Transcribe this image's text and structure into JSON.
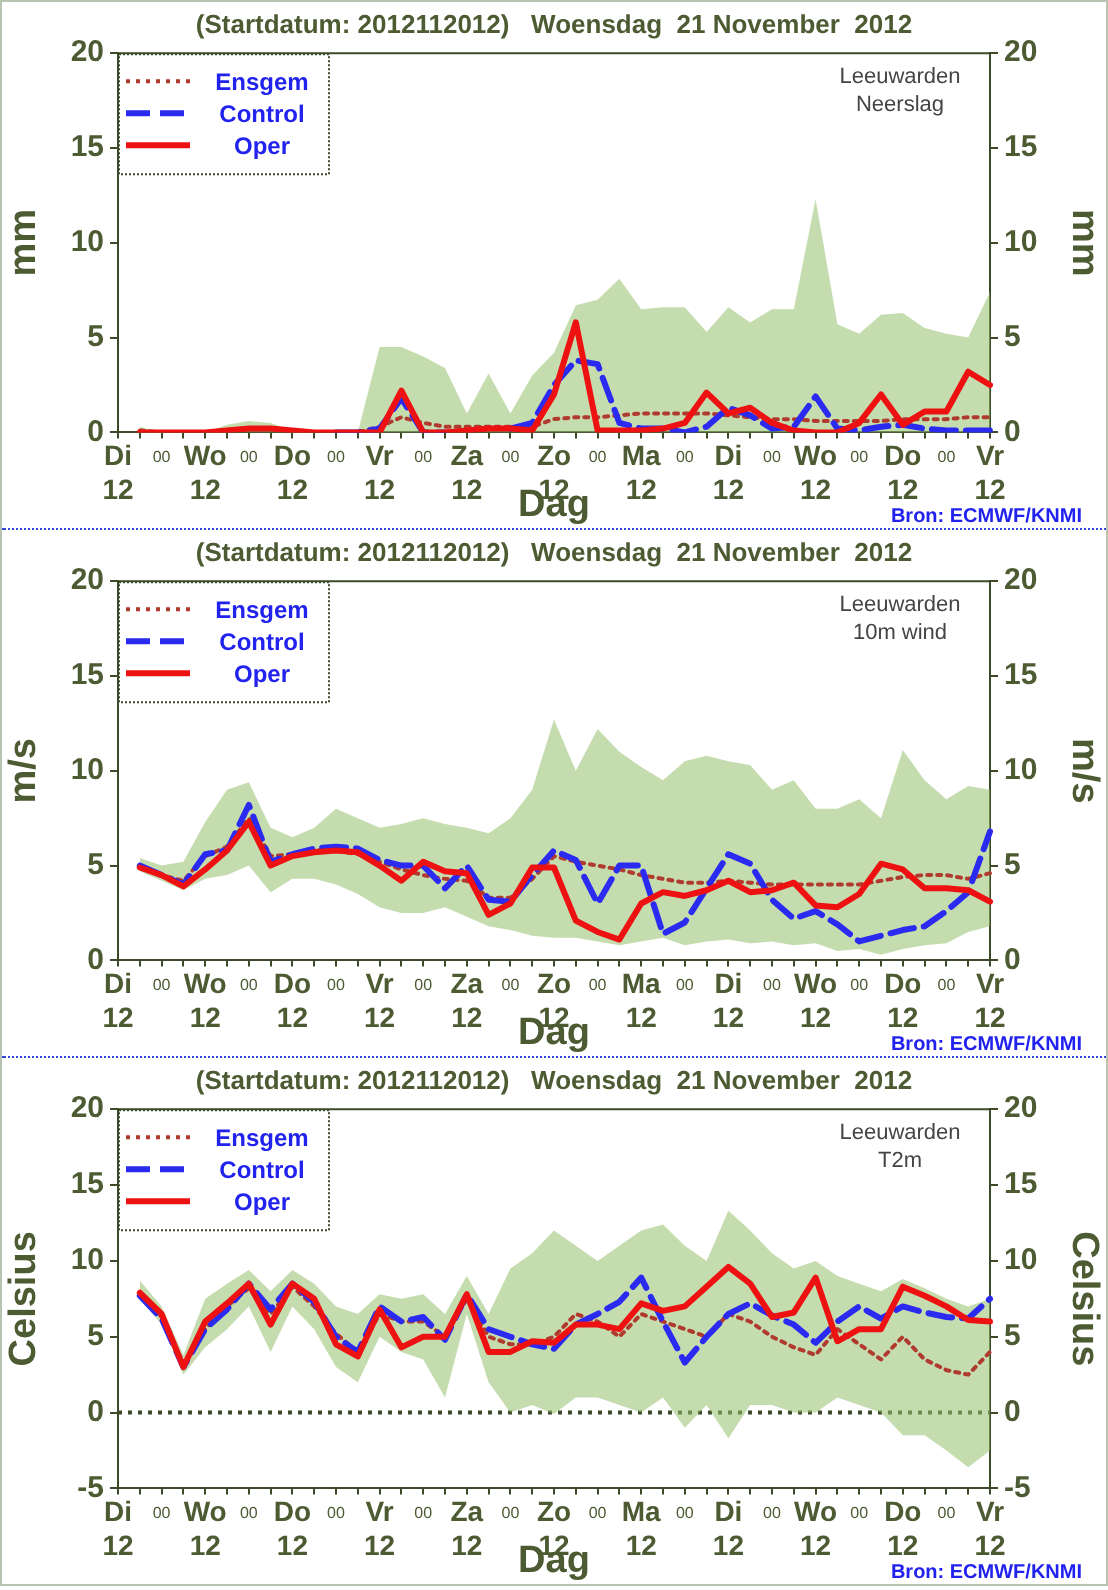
{
  "chart_data": [
    {
      "type": "line",
      "title": "(Startdatum: 2012112012)   Woensdag  21 November  2012",
      "xlabel": "Dag",
      "ylabel": "mm",
      "y2label": "mm",
      "annotations": [
        "Leeuwarden",
        "Neerslag",
        "Bron: ECMWF/KNMI"
      ],
      "categories": [
        "Di\n12",
        null,
        "00",
        null,
        "Wo\n12",
        null,
        "00",
        null,
        "Do\n12",
        null,
        "00",
        null,
        "Vr\n12",
        null,
        "00",
        null,
        "Za\n12",
        null,
        "00",
        null,
        "Zo\n12",
        null,
        "00",
        null,
        "Ma\n12",
        null,
        "00",
        null,
        "Di\n12",
        null,
        "00",
        null,
        "Wo\n12",
        null,
        "00",
        null,
        "Do\n12",
        null,
        "00",
        null,
        "Vr\n12"
      ],
      "ylim": [
        0,
        20
      ],
      "yticks": [
        0,
        5,
        10,
        15,
        20
      ],
      "y2lim": [
        0,
        20
      ],
      "y2ticks": [
        0,
        5,
        10,
        15,
        20
      ],
      "legend": "top left",
      "series": [
        {
          "name": "Ensgem",
          "color": "#b03a2e",
          "line_style": "dotted",
          "values": [
            null,
            0.1,
            0,
            0,
            0,
            0.1,
            0.2,
            0.2,
            0.1,
            0,
            0,
            0,
            0.3,
            0.8,
            0.5,
            0.3,
            0.3,
            0.3,
            0.3,
            0.3,
            0.7,
            0.8,
            0.8,
            0.9,
            1.0,
            1.0,
            1.0,
            1.0,
            0.9,
            0.8,
            0.7,
            0.7,
            0.6,
            0.6,
            0.6,
            0.6,
            0.7,
            0.7,
            0.7,
            0.8,
            0.8
          ],
          "lower": [
            null,
            0,
            0,
            0,
            0,
            0,
            0,
            0,
            0,
            0,
            0,
            0,
            0,
            0,
            0,
            0,
            0,
            0,
            0,
            0,
            0,
            0,
            0,
            0,
            0,
            0,
            0,
            0,
            0,
            0,
            0,
            0,
            0,
            0,
            0,
            0,
            0,
            0,
            0,
            0,
            0
          ],
          "upper": [
            null,
            0.3,
            0,
            0,
            0,
            0.4,
            0.6,
            0.5,
            0.1,
            0,
            0,
            0,
            4.5,
            4.5,
            4.0,
            3.4,
            1.0,
            3.1,
            1.0,
            3.0,
            4.2,
            6.7,
            7.0,
            8.1,
            6.5,
            6.6,
            6.6,
            5.3,
            6.6,
            5.8,
            6.5,
            6.5,
            12.3,
            5.7,
            5.2,
            6.2,
            6.3,
            5.5,
            5.2,
            5.0,
            7.4
          ]
        },
        {
          "name": "Control",
          "color": "#2a2af0",
          "line_style": "dashed",
          "values": [
            null,
            null,
            null,
            null,
            null,
            null,
            null,
            null,
            null,
            null,
            0,
            0,
            0.2,
            1.8,
            0,
            0,
            null,
            null,
            0.2,
            0.5,
            2.5,
            3.8,
            3.6,
            0.5,
            0.2,
            0.2,
            0,
            0.3,
            1.3,
            0.9,
            0.2,
            0.3,
            1.9,
            0.2,
            0.1,
            0.3,
            0.4,
            0.2,
            0.1,
            0.1,
            0.1
          ]
        },
        {
          "name": "Oper",
          "color": "#ee1111",
          "line_style": "solid",
          "values": [
            null,
            0,
            0,
            0,
            0,
            0.1,
            0.2,
            0.2,
            0.1,
            0,
            0,
            0,
            0,
            2.2,
            0,
            0,
            0.1,
            0.2,
            0.2,
            0.1,
            2.0,
            5.8,
            0.1,
            0.1,
            0.1,
            0.2,
            0.5,
            2.1,
            1.0,
            1.3,
            0.5,
            0.1,
            0,
            0,
            0.5,
            2.0,
            0.4,
            1.1,
            1.1,
            3.2,
            2.5
          ]
        }
      ]
    },
    {
      "type": "line",
      "title": "(Startdatum: 2012112012)   Woensdag  21 November  2012",
      "xlabel": "Dag",
      "ylabel": "m/s",
      "y2label": "m/s",
      "annotations": [
        "Leeuwarden",
        "10m wind",
        "Bron: ECMWF/KNMI"
      ],
      "categories": [
        "Di\n12",
        null,
        "00",
        null,
        "Wo\n12",
        null,
        "00",
        null,
        "Do\n12",
        null,
        "00",
        null,
        "Vr\n12",
        null,
        "00",
        null,
        "Za\n12",
        null,
        "00",
        null,
        "Zo\n12",
        null,
        "00",
        null,
        "Ma\n12",
        null,
        "00",
        null,
        "Di\n12",
        null,
        "00",
        null,
        "Wo\n12",
        null,
        "00",
        null,
        "Do\n12",
        null,
        "00",
        null,
        "Vr\n12"
      ],
      "ylim": [
        0,
        20
      ],
      "yticks": [
        0,
        5,
        10,
        15,
        20
      ],
      "y2lim": [
        0,
        20
      ],
      "y2ticks": [
        0,
        5,
        10,
        15,
        20
      ],
      "legend": "top left",
      "series": [
        {
          "name": "Ensgem",
          "color": "#b03a2e",
          "line_style": "dotted",
          "values": [
            null,
            5.0,
            4.5,
            4.2,
            5.5,
            6.0,
            7.5,
            5.5,
            5.6,
            5.8,
            5.8,
            5.6,
            5.2,
            4.8,
            4.5,
            4.3,
            4.2,
            3.3,
            3.3,
            4.3,
            5.5,
            5.2,
            5.0,
            4.8,
            4.5,
            4.3,
            4.1,
            4.1,
            4.2,
            4.1,
            4.0,
            4.0,
            4.0,
            4.0,
            4.0,
            4.2,
            4.4,
            4.5,
            4.5,
            4.3,
            4.6
          ],
          "lower": [
            null,
            4.7,
            4.2,
            3.7,
            4.3,
            4.5,
            5.0,
            3.6,
            4.3,
            4.3,
            4.0,
            3.5,
            2.8,
            2.5,
            2.5,
            2.8,
            2.3,
            1.8,
            1.6,
            1.3,
            1.2,
            1.2,
            1.0,
            0.8,
            1.0,
            1.2,
            0.8,
            1.0,
            1.1,
            0.9,
            1.0,
            0.8,
            0.9,
            0.5,
            0.6,
            0.3,
            0.6,
            0.8,
            0.9,
            1.5,
            1.8
          ],
          "upper": [
            null,
            5.4,
            5.0,
            5.2,
            7.3,
            9.0,
            9.4,
            7.0,
            6.5,
            7.0,
            8.0,
            7.5,
            7.0,
            7.2,
            7.5,
            7.2,
            7.0,
            6.7,
            7.5,
            9.0,
            12.7,
            10.0,
            12.2,
            11.0,
            10.2,
            9.5,
            10.5,
            10.8,
            10.5,
            10.3,
            9.0,
            9.5,
            8.0,
            8.0,
            8.5,
            7.5,
            11.1,
            9.5,
            8.5,
            9.2,
            9.0
          ]
        },
        {
          "name": "Control",
          "color": "#2a2af0",
          "line_style": "dashed",
          "values": [
            null,
            5.0,
            4.5,
            4.0,
            5.6,
            5.8,
            8.2,
            5.2,
            5.6,
            5.9,
            6.0,
            5.9,
            5.3,
            5.0,
            5.0,
            3.8,
            5.0,
            3.2,
            3.1,
            4.5,
            5.8,
            5.3,
            3.0,
            5.0,
            5.0,
            1.4,
            2.0,
            3.8,
            5.6,
            5.1,
            3.2,
            2.2,
            2.6,
            1.9,
            1.0,
            1.3,
            1.6,
            1.8,
            2.6,
            3.6,
            6.8
          ]
        },
        {
          "name": "Oper",
          "color": "#ee1111",
          "line_style": "solid",
          "values": [
            null,
            4.9,
            4.5,
            3.9,
            4.8,
            5.8,
            7.3,
            5.0,
            5.5,
            5.7,
            5.8,
            5.7,
            5.0,
            4.2,
            5.2,
            4.7,
            4.6,
            2.4,
            3.0,
            4.9,
            4.9,
            2.1,
            1.5,
            1.1,
            3.0,
            3.6,
            3.4,
            3.7,
            4.2,
            3.6,
            3.7,
            4.1,
            2.9,
            2.8,
            3.5,
            5.1,
            4.8,
            3.8,
            3.8,
            3.7,
            3.1
          ]
        }
      ]
    },
    {
      "type": "line",
      "title": "(Startdatum: 2012112012)   Woensdag  21 November  2012",
      "xlabel": "Dag",
      "ylabel": "Celsius",
      "y2label": "Celsius",
      "annotations": [
        "Leeuwarden",
        "T2m",
        "Bron: ECMWF/KNMI"
      ],
      "categories": [
        "Di\n12",
        null,
        "00",
        null,
        "Wo\n12",
        null,
        "00",
        null,
        "Do\n12",
        null,
        "00",
        null,
        "Vr\n12",
        null,
        "00",
        null,
        "Za\n12",
        null,
        "00",
        null,
        "Zo\n12",
        null,
        "00",
        null,
        "Ma\n12",
        null,
        "00",
        null,
        "Di\n12",
        null,
        "00",
        null,
        "Wo\n12",
        null,
        "00",
        null,
        "Do\n12",
        null,
        "00",
        null,
        "Vr\n12"
      ],
      "ylim": [
        -5,
        20
      ],
      "yticks": [
        -5,
        0,
        5,
        10,
        15,
        20
      ],
      "y2lim": [
        -5,
        20
      ],
      "y2ticks": [
        -5,
        0,
        5,
        10,
        15,
        20
      ],
      "legend": "top left",
      "ref_lines": [
        {
          "axis": "y",
          "value": 0,
          "color": "#3d4a2a",
          "line_style": "dotted"
        }
      ],
      "series": [
        {
          "name": "Ensgem",
          "color": "#b03a2e",
          "line_style": "dotted",
          "values": [
            null,
            7.8,
            6.3,
            3.2,
            5.5,
            7.0,
            8.2,
            6.5,
            8.3,
            7.0,
            5.2,
            4.0,
            6.5,
            6.0,
            6.0,
            5.0,
            7.5,
            5.0,
            4.5,
            4.5,
            5.0,
            6.5,
            6.0,
            5.0,
            6.5,
            6.0,
            5.5,
            5.0,
            6.5,
            6.0,
            5.0,
            4.3,
            3.8,
            5.5,
            4.5,
            3.5,
            5.0,
            3.5,
            2.8,
            2.5,
            4.0
          ],
          "lower": [
            null,
            7.5,
            5.8,
            2.5,
            4.3,
            5.5,
            7.0,
            4.0,
            7.0,
            5.5,
            3.0,
            2.0,
            5.0,
            4.0,
            3.5,
            1.0,
            6.5,
            2.0,
            0.0,
            0.5,
            -0.1,
            1.0,
            1.0,
            0.5,
            0.0,
            1.0,
            -1.0,
            0.5,
            -1.7,
            0.5,
            0.5,
            0.0,
            0.0,
            1.0,
            0.5,
            0.0,
            -1.5,
            -1.5,
            -2.5,
            -3.6,
            -2.5
          ],
          "upper": [
            null,
            8.7,
            7.0,
            3.8,
            7.5,
            8.5,
            9.4,
            8.0,
            9.4,
            8.5,
            7.0,
            6.5,
            7.8,
            7.5,
            7.8,
            6.5,
            9.0,
            6.5,
            9.5,
            10.5,
            12.0,
            11.0,
            10.0,
            11.0,
            12.0,
            12.4,
            11.0,
            10.0,
            13.3,
            12.0,
            10.5,
            9.5,
            10.0,
            9.0,
            8.5,
            8.0,
            8.8,
            8.2,
            7.5,
            7.0,
            7.5
          ]
        },
        {
          "name": "Control",
          "color": "#2a2af0",
          "line_style": "dashed",
          "values": [
            null,
            7.7,
            6.2,
            3.0,
            5.5,
            6.8,
            8.5,
            6.8,
            8.5,
            7.3,
            5.0,
            4.0,
            7.0,
            6.0,
            6.3,
            4.8,
            7.8,
            5.5,
            5.0,
            4.5,
            4.2,
            5.8,
            6.5,
            7.3,
            8.9,
            6.0,
            3.3,
            5.0,
            6.5,
            7.2,
            6.4,
            5.8,
            4.6,
            6.0,
            7.0,
            6.2,
            7.0,
            6.6,
            6.3,
            6.2,
            7.5
          ]
        },
        {
          "name": "Oper",
          "color": "#ee1111",
          "line_style": "solid",
          "values": [
            null,
            7.9,
            6.5,
            3.0,
            6.0,
            7.2,
            8.5,
            5.8,
            8.5,
            7.5,
            4.5,
            3.7,
            6.8,
            4.3,
            5.0,
            5.0,
            7.8,
            4.0,
            4.0,
            4.7,
            4.6,
            5.8,
            5.8,
            5.5,
            7.2,
            6.7,
            7.0,
            8.3,
            9.6,
            8.5,
            6.3,
            6.6,
            8.9,
            4.7,
            5.5,
            5.5,
            8.3,
            7.7,
            7.0,
            6.1,
            6.0
          ]
        }
      ]
    }
  ]
}
